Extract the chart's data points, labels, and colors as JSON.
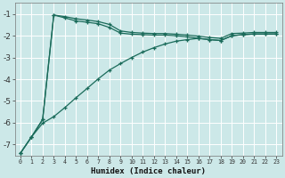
{
  "xlabel": "Humidex (Indice chaleur)",
  "bg_color": "#cce8e8",
  "line_color": "#1a6b5a",
  "grid_color": "#ffffff",
  "ylim": [
    -7.5,
    -0.5
  ],
  "xlim": [
    -0.5,
    23.5
  ],
  "yticks": [
    -7,
    -6,
    -5,
    -4,
    -3,
    -2,
    -1
  ],
  "xticks": [
    0,
    1,
    2,
    3,
    4,
    5,
    6,
    7,
    8,
    9,
    10,
    11,
    12,
    13,
    14,
    15,
    16,
    17,
    18,
    19,
    20,
    21,
    22,
    23
  ],
  "line1_x": [
    0,
    1,
    2,
    3,
    4,
    5,
    6,
    7,
    8,
    9,
    10,
    11,
    12,
    13,
    14,
    15,
    16,
    17,
    18,
    19,
    20,
    21,
    22,
    23
  ],
  "line1_y": [
    -7.4,
    -6.65,
    -5.85,
    -1.05,
    -1.12,
    -1.22,
    -1.28,
    -1.35,
    -1.48,
    -1.78,
    -1.85,
    -1.88,
    -1.9,
    -1.9,
    -1.93,
    -1.97,
    -2.02,
    -2.08,
    -2.12,
    -1.9,
    -1.88,
    -1.85,
    -1.85,
    -1.85
  ],
  "line2_x": [
    0,
    1,
    2,
    3,
    4,
    5,
    6,
    7,
    8,
    9,
    10,
    11,
    12,
    13,
    14,
    15,
    16,
    17,
    18,
    19,
    20,
    21,
    22,
    23
  ],
  "line2_y": [
    -7.4,
    -6.65,
    -5.85,
    -1.05,
    -1.18,
    -1.32,
    -1.38,
    -1.45,
    -1.62,
    -1.88,
    -1.93,
    -1.95,
    -1.97,
    -1.97,
    -2.0,
    -2.05,
    -2.12,
    -2.18,
    -2.22,
    -2.0,
    -1.95,
    -1.92,
    -1.92,
    -1.92
  ],
  "line3_x": [
    0,
    1,
    2,
    3,
    4,
    5,
    6,
    7,
    8,
    9,
    10,
    11,
    12,
    13,
    14,
    15,
    16,
    17,
    18,
    19,
    20,
    21,
    22,
    23
  ],
  "line3_y": [
    -7.4,
    -6.65,
    -6.02,
    -5.72,
    -5.3,
    -4.85,
    -4.42,
    -3.98,
    -3.58,
    -3.28,
    -3.0,
    -2.75,
    -2.55,
    -2.38,
    -2.25,
    -2.18,
    -2.12,
    -2.18,
    -2.22,
    -2.0,
    -1.95,
    -1.92,
    -1.92,
    -1.92
  ]
}
